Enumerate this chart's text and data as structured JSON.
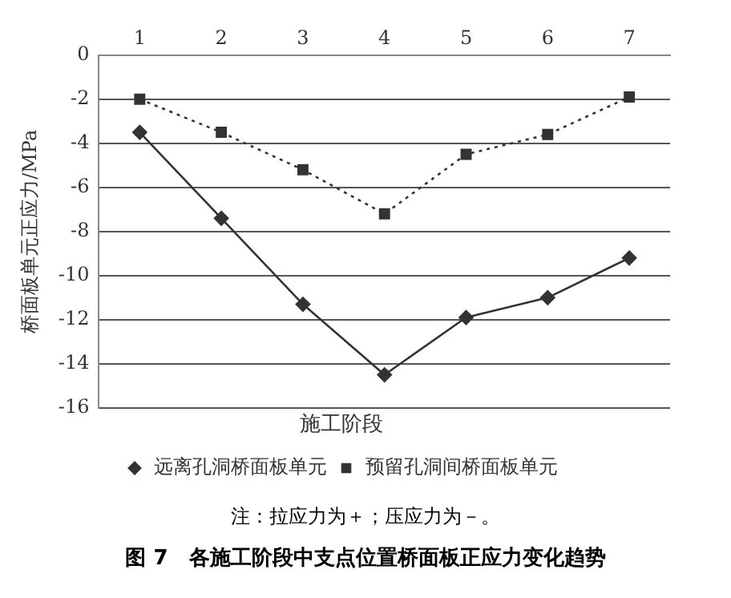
{
  "chart_data": {
    "type": "line",
    "title": "图 7　各施工阶段中支点位置桥面板正应力变化趋势",
    "xlabel": "施工阶段",
    "ylabel": "桥面板单元正应力/MPa",
    "annotations": [
      "注：拉应力为＋；压应力为－。"
    ],
    "categories": [
      "1",
      "2",
      "3",
      "4",
      "5",
      "6",
      "7"
    ],
    "series": [
      {
        "name": "远离孔洞桥面板单元",
        "color": "#333333",
        "marker": "diamond",
        "line_style": "solid",
        "values": [
          -3.5,
          -7.4,
          -11.3,
          -14.5,
          -11.9,
          -11.0,
          -9.2
        ]
      },
      {
        "name": "预留孔洞间桥面板单元",
        "color": "#333333",
        "marker": "square",
        "line_style": "dotted",
        "values": [
          -2.0,
          -3.5,
          -5.2,
          -7.2,
          -4.5,
          -3.6,
          -1.9
        ]
      }
    ],
    "ylim": [
      -16,
      0
    ],
    "yticks": [
      0,
      -2,
      -4,
      -6,
      -8,
      -10,
      -12,
      -14,
      -16
    ],
    "grid": "y",
    "legend": "bottom"
  }
}
